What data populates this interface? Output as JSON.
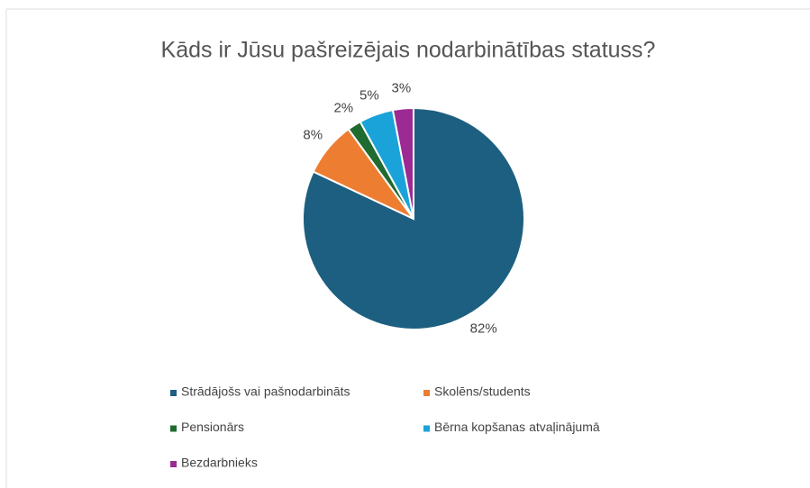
{
  "chart_data": {
    "type": "pie",
    "title": "Kāds ir Jūsu pašreizējais nodarbinātības statuss?",
    "categories": [
      "Strādājošs vai pašnodarbināts",
      "Skolēns/students",
      "Pensionārs",
      "Bērna kopšanas atvaļinājumā",
      "Bezdarbnieks"
    ],
    "values": [
      82,
      8,
      2,
      5,
      3
    ],
    "value_labels": [
      "82%",
      "8%",
      "2%",
      "5%",
      "3%"
    ],
    "colors": [
      "#1d5f80",
      "#ed7d31",
      "#1f6b30",
      "#1aa3d9",
      "#9b2a93"
    ]
  }
}
